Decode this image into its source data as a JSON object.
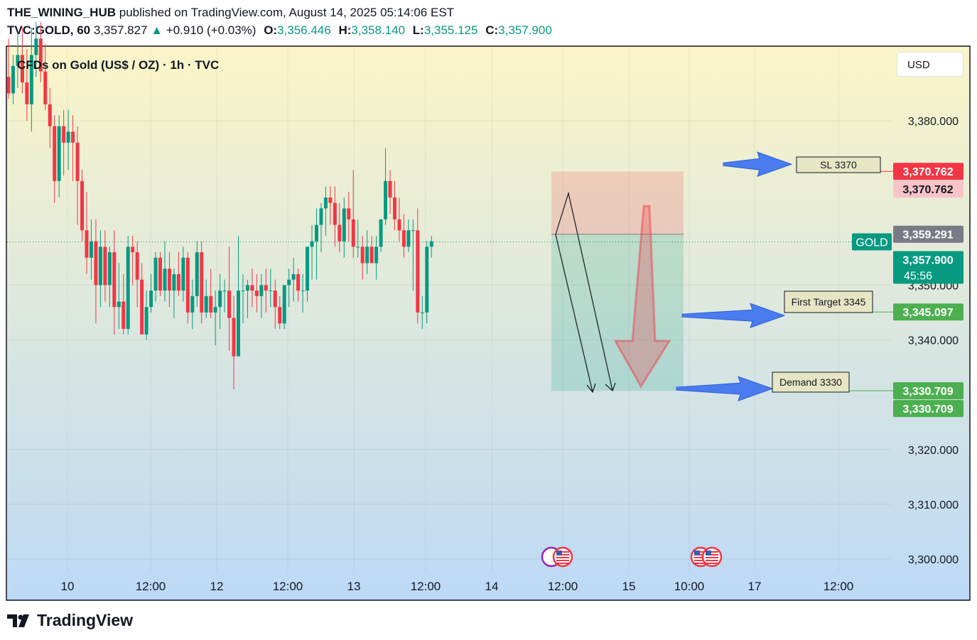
{
  "header": {
    "author": "THE_WINING_HUB",
    "published": "published on TradingView.com, August 14, 2025 05:14:06 EST",
    "symbol": "TVC:GOLD, 60",
    "last": "3,357.827",
    "change": "+0.910 (+0.03%)",
    "o_label": "O:",
    "o": "3,356.446",
    "h_label": "H:",
    "h": "3,358.140",
    "l_label": "L:",
    "l": "3,355.125",
    "c_label": "C:",
    "c": "3,357.900"
  },
  "currency_button": "USD",
  "footer": {
    "brand": "TradingView"
  },
  "colors": {
    "up": "#089981",
    "down": "#f23645",
    "target_green": "#4caf50",
    "stop_red": "#f23645",
    "arrow_blue": "#4a7cf0",
    "bg_top": "#fbf5c8",
    "bg_bottom": "#bcd9f6"
  },
  "chart_data": {
    "type": "candlestick",
    "title": "CFDs on Gold (US$ / OZ) · 1h · TVC",
    "ylim": [
      3296,
      3398
    ],
    "y_ticks": [
      {
        "value": 3380,
        "label": "3,380.000"
      },
      {
        "value": 3350,
        "label": "3,350.000"
      },
      {
        "value": 3340,
        "label": "3,340.000"
      },
      {
        "value": 3320,
        "label": "3,320.000"
      },
      {
        "value": 3310,
        "label": "3,310.000"
      },
      {
        "value": 3300,
        "label": "3,300.000"
      }
    ],
    "x_ticks": [
      "10",
      "12:00",
      "12",
      "12:00",
      "13",
      "12:00",
      "14",
      "12:00",
      "15",
      "10:00",
      "17",
      "12:00"
    ],
    "candles": [
      [
        3388,
        3395,
        3384,
        3385
      ],
      [
        3385,
        3392,
        3383,
        3390
      ],
      [
        3390,
        3396,
        3386,
        3392
      ],
      [
        3392,
        3397,
        3385,
        3387
      ],
      [
        3387,
        3393,
        3380,
        3383
      ],
      [
        3383,
        3397,
        3378,
        3392
      ],
      [
        3392,
        3398,
        3388,
        3395
      ],
      [
        3395,
        3398,
        3387,
        3389
      ],
      [
        3389,
        3394,
        3382,
        3383
      ],
      [
        3383,
        3386,
        3375,
        3379
      ],
      [
        3379,
        3381,
        3365,
        3369
      ],
      [
        3369,
        3381,
        3366,
        3379
      ],
      [
        3379,
        3382,
        3370,
        3376
      ],
      [
        3376,
        3382,
        3371,
        3378
      ],
      [
        3378,
        3381,
        3369,
        3376
      ],
      [
        3376,
        3379,
        3361,
        3369
      ],
      [
        3369,
        3371,
        3358,
        3360
      ],
      [
        3360,
        3367,
        3352,
        3355
      ],
      [
        3355,
        3362,
        3351,
        3358
      ],
      [
        3358,
        3362,
        3343,
        3350
      ],
      [
        3350,
        3360,
        3346,
        3357
      ],
      [
        3357,
        3360,
        3347,
        3350
      ],
      [
        3350,
        3357,
        3346,
        3356
      ],
      [
        3356,
        3360,
        3341,
        3346
      ],
      [
        3346,
        3354,
        3342,
        3347
      ],
      [
        3347,
        3352,
        3341,
        3342
      ],
      [
        3342,
        3359,
        3341,
        3357
      ],
      [
        3357,
        3359,
        3350,
        3356
      ],
      [
        3356,
        3358,
        3346,
        3351
      ],
      [
        3351,
        3354,
        3341,
        3341
      ],
      [
        3341,
        3349,
        3340,
        3346
      ],
      [
        3346,
        3352,
        3345,
        3349
      ],
      [
        3349,
        3356,
        3347,
        3355
      ],
      [
        3355,
        3356,
        3348,
        3349
      ],
      [
        3349,
        3358,
        3347,
        3353
      ],
      [
        3353,
        3356,
        3346,
        3349
      ],
      [
        3349,
        3353,
        3344,
        3352
      ],
      [
        3352,
        3356,
        3348,
        3349
      ],
      [
        3349,
        3357,
        3347,
        3355
      ],
      [
        3355,
        3356,
        3343,
        3345
      ],
      [
        3345,
        3351,
        3342,
        3348
      ],
      [
        3348,
        3358,
        3346,
        3356
      ],
      [
        3356,
        3358,
        3343,
        3345
      ],
      [
        3345,
        3351,
        3344,
        3348
      ],
      [
        3348,
        3353,
        3344,
        3345
      ],
      [
        3345,
        3349,
        3339,
        3346
      ],
      [
        3346,
        3352,
        3342,
        3349
      ],
      [
        3349,
        3351,
        3345,
        3349
      ],
      [
        3349,
        3357,
        3338,
        3344
      ],
      [
        3344,
        3348,
        3331,
        3337
      ],
      [
        3337,
        3359,
        3337,
        3349
      ],
      [
        3349,
        3352,
        3343,
        3349
      ],
      [
        3349,
        3351,
        3344,
        3350
      ],
      [
        3350,
        3353,
        3346,
        3349
      ],
      [
        3349,
        3352,
        3345,
        3348
      ],
      [
        3348,
        3352,
        3344,
        3350
      ],
      [
        3350,
        3353,
        3345,
        3349
      ],
      [
        3349,
        3353,
        3346,
        3349
      ],
      [
        3349,
        3351,
        3342,
        3346
      ],
      [
        3346,
        3348,
        3342,
        3343
      ],
      [
        3343,
        3350,
        3342,
        3350
      ],
      [
        3350,
        3353,
        3346,
        3351
      ],
      [
        3351,
        3355,
        3347,
        3352
      ],
      [
        3352,
        3353,
        3347,
        3349
      ],
      [
        3349,
        3352,
        3345,
        3349
      ],
      [
        3349,
        3357,
        3347,
        3357
      ],
      [
        3357,
        3361,
        3351,
        3358
      ],
      [
        3358,
        3364,
        3351,
        3361
      ],
      [
        3361,
        3365,
        3356,
        3364
      ],
      [
        3364,
        3368,
        3359,
        3366
      ],
      [
        3366,
        3368,
        3361,
        3365
      ],
      [
        3365,
        3368,
        3357,
        3361
      ],
      [
        3361,
        3365,
        3356,
        3358
      ],
      [
        3358,
        3366,
        3355,
        3364
      ],
      [
        3364,
        3367,
        3358,
        3362
      ],
      [
        3362,
        3371,
        3355,
        3357
      ],
      [
        3357,
        3362,
        3355,
        3357
      ],
      [
        3357,
        3359,
        3351,
        3354
      ],
      [
        3354,
        3360,
        3352,
        3357
      ],
      [
        3357,
        3359,
        3354,
        3354
      ],
      [
        3354,
        3359,
        3351,
        3357
      ],
      [
        3357,
        3362,
        3356,
        3362
      ],
      [
        3362,
        3375,
        3361,
        3369
      ],
      [
        3369,
        3371,
        3363,
        3366
      ],
      [
        3366,
        3369,
        3360,
        3362
      ],
      [
        3362,
        3366,
        3358,
        3360
      ],
      [
        3360,
        3363,
        3355,
        3357
      ],
      [
        3357,
        3362,
        3356,
        3360
      ],
      [
        3360,
        3362,
        3349,
        3360
      ],
      [
        3360,
        3364,
        3343,
        3345
      ],
      [
        3345,
        3348,
        3342,
        3345
      ],
      [
        3345,
        3358,
        3343,
        3357
      ],
      [
        3357,
        3359,
        3355,
        3358
      ]
    ],
    "current_price": 3357.9,
    "position": {
      "entry": 3359.291,
      "stop": 3370.762,
      "target": 3330.709
    },
    "price_labels": [
      {
        "text": "3,370.762",
        "value": 3370.762,
        "style": "stop"
      },
      {
        "text": "3,370.762",
        "value": 3370.762,
        "style": "stop_light"
      },
      {
        "text": "3,359.291",
        "value": 3359.291,
        "style": "entry"
      },
      {
        "text": "GOLD",
        "value": 3357.9,
        "style": "symbol"
      },
      {
        "text": "3,357.900",
        "value": 3357.9,
        "style": "current",
        "sub": "45:56"
      },
      {
        "text": "3,345.097",
        "value": 3345.097,
        "style": "target"
      },
      {
        "text": "3,330.709",
        "value": 3330.709,
        "style": "target"
      },
      {
        "text": "3,330.709",
        "value": 3330.709,
        "style": "target"
      }
    ],
    "annotations": [
      {
        "text": "SL 3370",
        "value": 3370.762
      },
      {
        "text": "First Target 3345",
        "value": 3345.097
      },
      {
        "text": "Demand 3330",
        "value": 3330.709
      }
    ]
  }
}
